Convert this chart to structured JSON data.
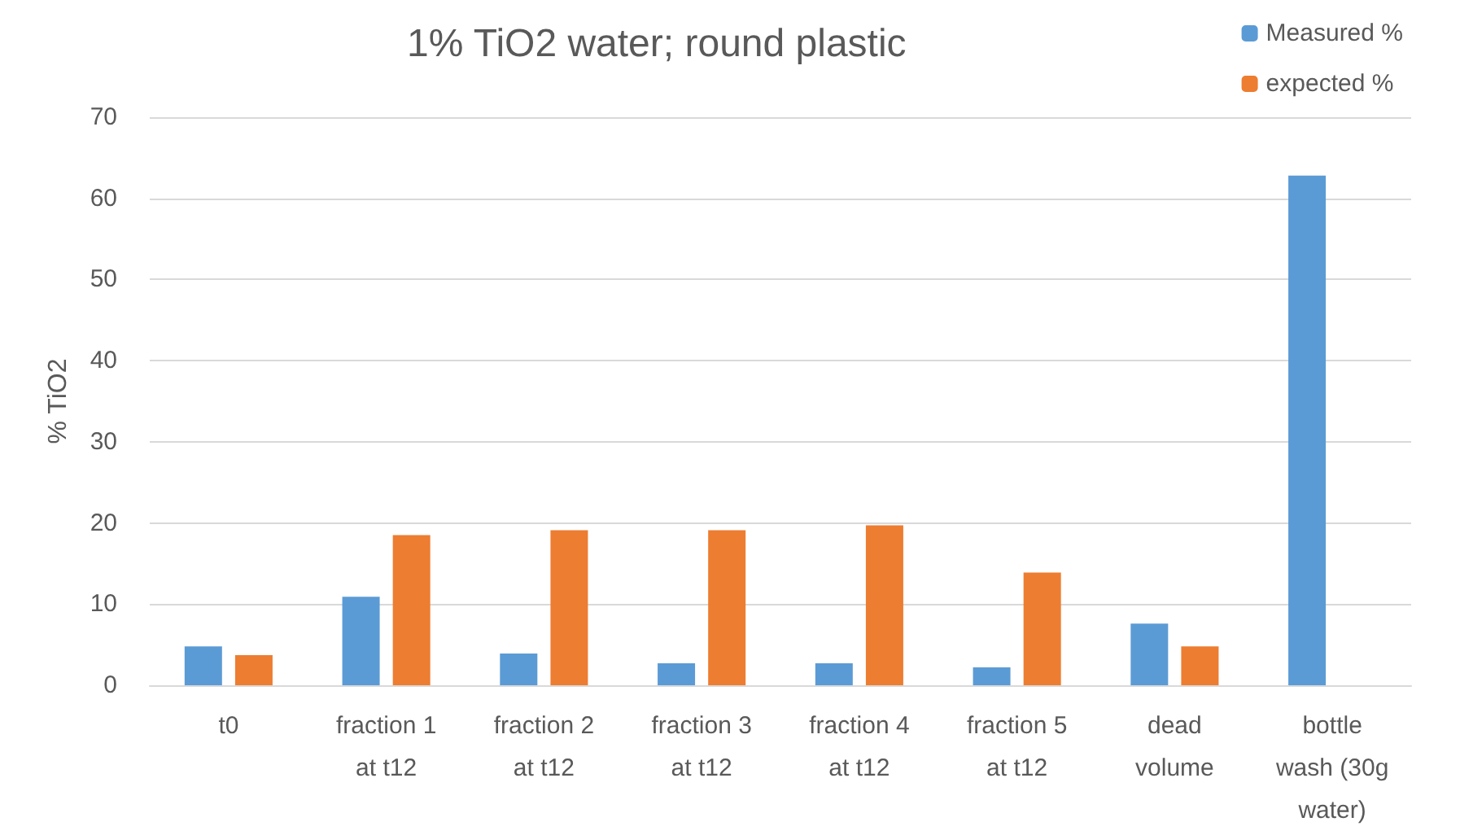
{
  "chart_data": {
    "type": "bar",
    "title": "1% TiO2 water; round plastic",
    "ylabel": "% TiO2",
    "categories": [
      "t0",
      "fraction 1\nat t12",
      "fraction 2\nat t12",
      "fraction 3\nat t12",
      "fraction 4\nat t12",
      "fraction 5\nat t12",
      "dead\nvolume",
      "bottle\nwash (30g\nwater)"
    ],
    "series": [
      {
        "name": "Measured %",
        "color": "#5b9bd5",
        "values": [
          4.8,
          10.9,
          3.9,
          2.7,
          2.7,
          2.2,
          7.6,
          62.8
        ]
      },
      {
        "name": "expected %",
        "color": "#ed7d31",
        "values": [
          3.7,
          18.5,
          19.1,
          19.1,
          19.7,
          13.9,
          4.8,
          null
        ]
      }
    ],
    "ylim": [
      0,
      70
    ],
    "yticks": [
      0,
      10,
      20,
      30,
      40,
      50,
      60,
      70
    ],
    "grid": "y",
    "legend": "top right"
  }
}
